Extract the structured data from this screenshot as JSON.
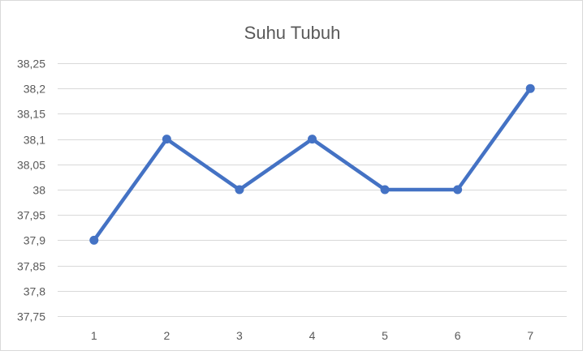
{
  "chart_data": {
    "type": "line",
    "title": "Suhu Tubuh",
    "categories": [
      "1",
      "2",
      "3",
      "4",
      "5",
      "6",
      "7"
    ],
    "series": [
      {
        "values": [
          37.9,
          38.1,
          38.0,
          38.1,
          38.0,
          38.0,
          38.2
        ]
      }
    ],
    "ylim": [
      37.75,
      38.25
    ],
    "yticks": [
      "37,75",
      "37,8",
      "37,85",
      "37,9",
      "37,95",
      "38",
      "38,05",
      "38,1",
      "38,15",
      "38,2",
      "38,25"
    ],
    "grid": true,
    "legend": "none",
    "colors": {
      "line": "#4472c4",
      "grid": "#d9d9d9",
      "text": "#595959"
    }
  }
}
